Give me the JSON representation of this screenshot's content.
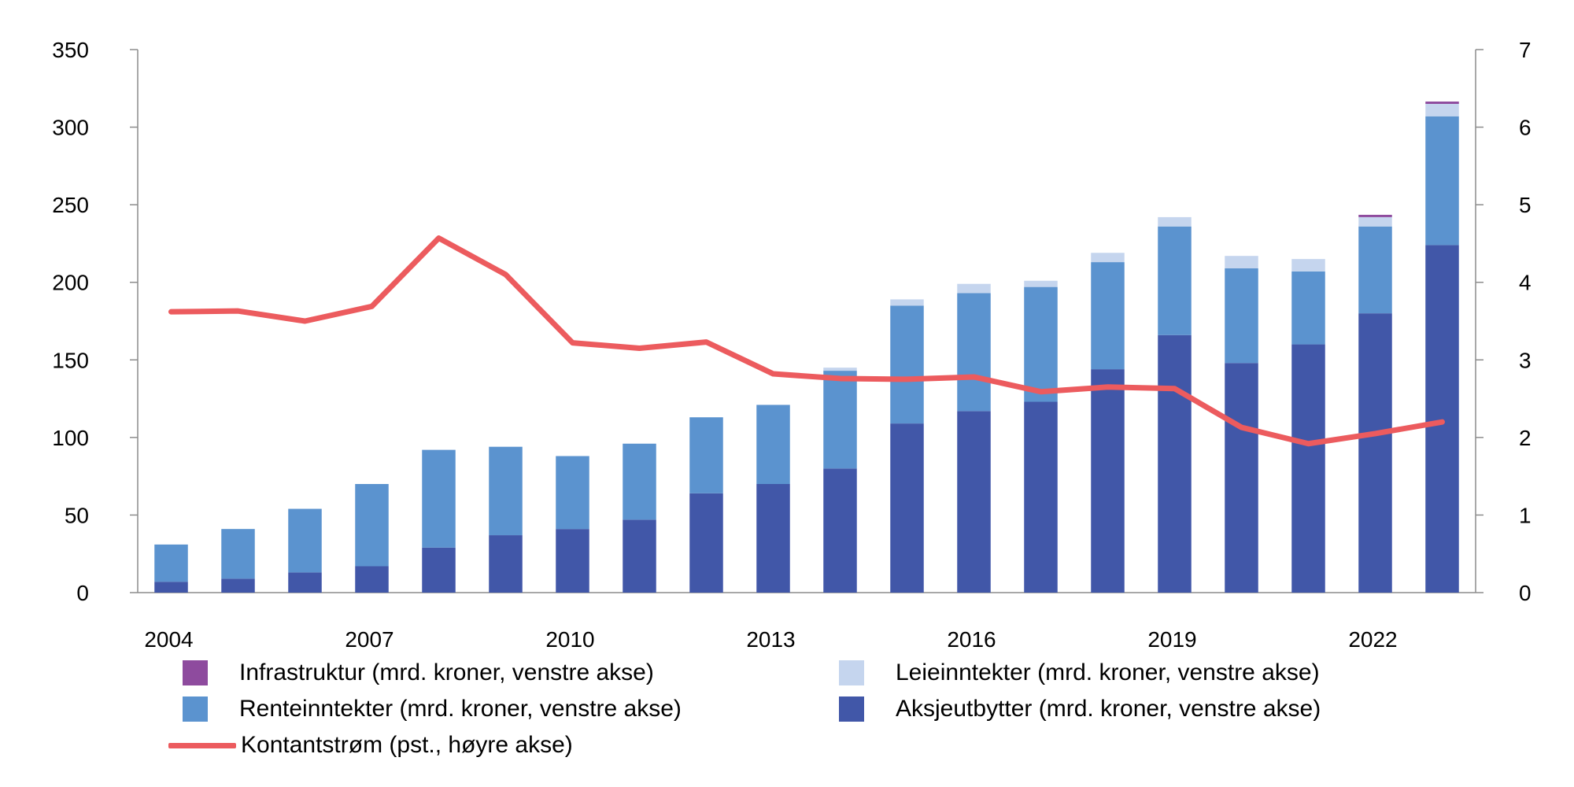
{
  "chart_data": {
    "type": "bar",
    "stacked": true,
    "x": [
      2004,
      2005,
      2006,
      2007,
      2008,
      2009,
      2010,
      2011,
      2012,
      2013,
      2014,
      2015,
      2016,
      2017,
      2018,
      2019,
      2020,
      2021,
      2022,
      2023
    ],
    "x_tick_labels": [
      "2004",
      "2007",
      "2010",
      "2013",
      "2016",
      "2019",
      "2022"
    ],
    "y_left": {
      "min": 0,
      "max": 350,
      "ticks": [
        0,
        50,
        100,
        150,
        200,
        250,
        300,
        350
      ]
    },
    "y_right": {
      "min": 0,
      "max": 7,
      "ticks": [
        0,
        1,
        2,
        3,
        4,
        5,
        6,
        7
      ]
    },
    "series": [
      {
        "name": "Aksjeutbytter (mrd. kroner, venstre akse)",
        "color": "#4157a8",
        "axis": "left",
        "values": [
          7,
          9,
          13,
          17,
          29,
          37,
          41,
          47,
          64,
          70,
          80,
          109,
          117,
          123,
          144,
          166,
          148,
          160,
          180,
          224
        ]
      },
      {
        "name": "Renteinntekter (mrd. kroner, venstre akse)",
        "color": "#5b93cf",
        "axis": "left",
        "values": [
          24,
          32,
          41,
          53,
          63,
          57,
          47,
          49,
          49,
          51,
          63,
          76,
          76,
          74,
          69,
          70,
          61,
          47,
          56,
          83
        ]
      },
      {
        "name": "Leieinntekter (mrd. kroner, venstre akse)",
        "color": "#c5d5ee",
        "axis": "left",
        "values": [
          0,
          0,
          0,
          0,
          0,
          0,
          0,
          0,
          0,
          0,
          2,
          4,
          6,
          4,
          6,
          6,
          8,
          8,
          6,
          8
        ]
      },
      {
        "name": "Infrastruktur (mrd. kroner, venstre akse)",
        "color": "#8e4b9e",
        "axis": "left",
        "values": [
          0,
          0,
          0,
          0,
          0,
          0,
          0,
          0,
          0,
          0,
          0,
          0,
          0,
          0,
          0,
          0,
          0,
          0,
          1.5,
          1.5
        ]
      },
      {
        "name": "Kontantstrøm (pst., høyre akse)",
        "type": "line",
        "color": "#ec5b5e",
        "axis": "right",
        "values": [
          3.62,
          3.63,
          3.5,
          3.69,
          4.57,
          4.1,
          3.22,
          3.15,
          3.23,
          2.82,
          2.76,
          2.75,
          2.78,
          2.59,
          2.65,
          2.63,
          2.13,
          1.92,
          2.05,
          2.2
        ]
      }
    ]
  },
  "legend": {
    "infrastruktur": "Infrastruktur (mrd. kroner, venstre akse)",
    "leieinntekter": "Leieinntekter (mrd. kroner, venstre akse)",
    "renteinntekter": "Renteinntekter (mrd. kroner, venstre akse)",
    "aksjeutbytter": "Aksjeutbytter (mrd. kroner, venstre akse)",
    "kontantstrom": "Kontantstrøm (pst., høyre akse)"
  }
}
